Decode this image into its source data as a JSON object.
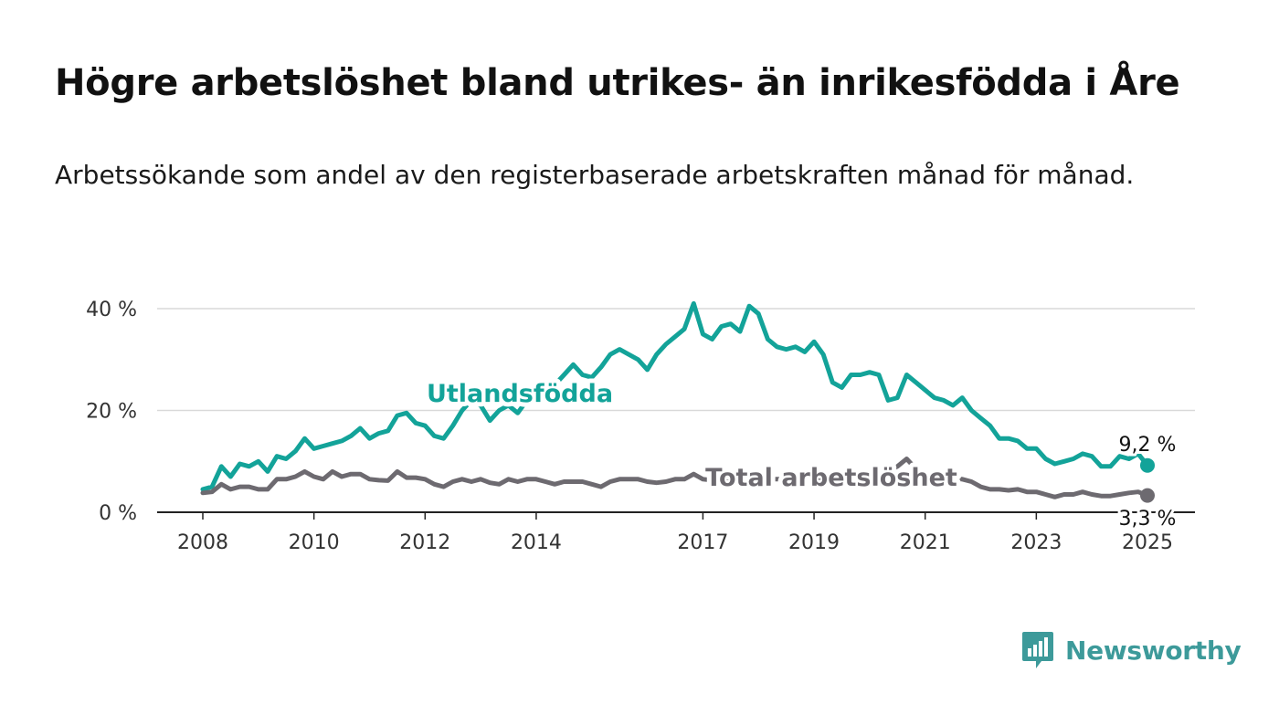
{
  "header": {
    "title": "Högre arbetslöshet bland utrikes- än inrikesfödda i Åre",
    "subtitle": "Arbetssökande som andel av den registerbaserade arbetskraften månad för månad."
  },
  "brand": {
    "name": "Newsworthy",
    "icon": "bar-chart-speech-bubble-icon",
    "color": "#3d9a9a"
  },
  "chart_data": {
    "type": "line",
    "x_axis_ticks": [
      "2008",
      "2010",
      "2012",
      "2014",
      "2017",
      "2019",
      "2021",
      "2023",
      "2025"
    ],
    "y_axis_ticks": [
      "0 %",
      "20 %",
      "40 %"
    ],
    "ylim": [
      0,
      40
    ],
    "grid": true,
    "series": [
      {
        "name": "Utlandsfödda",
        "color": "#13a399",
        "end_value_label": "9,2 %",
        "points": [
          [
            "2008-01",
            4.5
          ],
          [
            "2008-03",
            5.0
          ],
          [
            "2008-05",
            9.0
          ],
          [
            "2008-07",
            7.0
          ],
          [
            "2008-09",
            9.5
          ],
          [
            "2008-11",
            9.0
          ],
          [
            "2009-01",
            10.0
          ],
          [
            "2009-03",
            8.0
          ],
          [
            "2009-05",
            11.0
          ],
          [
            "2009-07",
            10.5
          ],
          [
            "2009-09",
            12.0
          ],
          [
            "2009-11",
            14.5
          ],
          [
            "2010-01",
            12.5
          ],
          [
            "2010-03",
            13.0
          ],
          [
            "2010-05",
            13.5
          ],
          [
            "2010-07",
            14.0
          ],
          [
            "2010-09",
            15.0
          ],
          [
            "2010-11",
            16.5
          ],
          [
            "2011-01",
            14.5
          ],
          [
            "2011-03",
            15.5
          ],
          [
            "2011-05",
            16.0
          ],
          [
            "2011-07",
            19.0
          ],
          [
            "2011-09",
            19.5
          ],
          [
            "2011-11",
            17.5
          ],
          [
            "2012-01",
            17.0
          ],
          [
            "2012-03",
            15.0
          ],
          [
            "2012-05",
            14.5
          ],
          [
            "2012-07",
            17.0
          ],
          [
            "2012-09",
            20.0
          ],
          [
            "2012-11",
            22.0
          ],
          [
            "2013-01",
            21.0
          ],
          [
            "2013-03",
            18.0
          ],
          [
            "2013-05",
            20.0
          ],
          [
            "2013-07",
            21.0
          ],
          [
            "2013-09",
            19.5
          ],
          [
            "2013-11",
            22.0
          ],
          [
            "2014-01",
            23.0
          ],
          [
            "2014-03",
            24.0
          ],
          [
            "2014-05",
            25.0
          ],
          [
            "2014-07",
            27.0
          ],
          [
            "2014-09",
            29.0
          ],
          [
            "2014-11",
            27.0
          ],
          [
            "2015-01",
            26.5
          ],
          [
            "2015-03",
            28.5
          ],
          [
            "2015-05",
            31.0
          ],
          [
            "2015-07",
            32.0
          ],
          [
            "2015-09",
            31.0
          ],
          [
            "2015-11",
            30.0
          ],
          [
            "2016-01",
            28.0
          ],
          [
            "2016-03",
            31.0
          ],
          [
            "2016-05",
            33.0
          ],
          [
            "2016-07",
            34.5
          ],
          [
            "2016-09",
            36.0
          ],
          [
            "2016-11",
            41.0
          ],
          [
            "2017-01",
            35.0
          ],
          [
            "2017-03",
            34.0
          ],
          [
            "2017-05",
            36.5
          ],
          [
            "2017-07",
            37.0
          ],
          [
            "2017-09",
            35.5
          ],
          [
            "2017-11",
            40.5
          ],
          [
            "2018-01",
            39.0
          ],
          [
            "2018-03",
            34.0
          ],
          [
            "2018-05",
            32.5
          ],
          [
            "2018-07",
            32.0
          ],
          [
            "2018-09",
            32.5
          ],
          [
            "2018-11",
            31.5
          ],
          [
            "2019-01",
            33.5
          ],
          [
            "2019-03",
            31.0
          ],
          [
            "2019-05",
            25.5
          ],
          [
            "2019-07",
            24.5
          ],
          [
            "2019-09",
            27.0
          ],
          [
            "2019-11",
            27.0
          ],
          [
            "2020-01",
            27.5
          ],
          [
            "2020-03",
            27.0
          ],
          [
            "2020-05",
            22.0
          ],
          [
            "2020-07",
            22.5
          ],
          [
            "2020-09",
            27.0
          ],
          [
            "2020-11",
            25.5
          ],
          [
            "2021-01",
            24.0
          ],
          [
            "2021-03",
            22.5
          ],
          [
            "2021-05",
            22.0
          ],
          [
            "2021-07",
            21.0
          ],
          [
            "2021-09",
            22.5
          ],
          [
            "2021-11",
            20.0
          ],
          [
            "2022-01",
            18.5
          ],
          [
            "2022-03",
            17.0
          ],
          [
            "2022-05",
            14.5
          ],
          [
            "2022-07",
            14.5
          ],
          [
            "2022-09",
            14.0
          ],
          [
            "2022-11",
            12.5
          ],
          [
            "2023-01",
            12.5
          ],
          [
            "2023-03",
            10.5
          ],
          [
            "2023-05",
            9.5
          ],
          [
            "2023-07",
            10.0
          ],
          [
            "2023-09",
            10.5
          ],
          [
            "2023-11",
            11.5
          ],
          [
            "2024-01",
            11.0
          ],
          [
            "2024-03",
            9.0
          ],
          [
            "2024-05",
            9.0
          ],
          [
            "2024-07",
            11.0
          ],
          [
            "2024-09",
            10.5
          ],
          [
            "2024-11",
            11.5
          ],
          [
            "2025-01",
            9.2
          ]
        ]
      },
      {
        "name": "Total arbetslöshet",
        "color": "#6d6a70",
        "end_value_label": "3,3 %",
        "points": [
          [
            "2008-01",
            3.8
          ],
          [
            "2008-03",
            4.0
          ],
          [
            "2008-05",
            5.5
          ],
          [
            "2008-07",
            4.5
          ],
          [
            "2008-09",
            5.0
          ],
          [
            "2008-11",
            5.0
          ],
          [
            "2009-01",
            4.5
          ],
          [
            "2009-03",
            4.5
          ],
          [
            "2009-05",
            6.5
          ],
          [
            "2009-07",
            6.5
          ],
          [
            "2009-09",
            7.0
          ],
          [
            "2009-11",
            8.0
          ],
          [
            "2010-01",
            7.0
          ],
          [
            "2010-03",
            6.5
          ],
          [
            "2010-05",
            8.0
          ],
          [
            "2010-07",
            7.0
          ],
          [
            "2010-09",
            7.5
          ],
          [
            "2010-11",
            7.5
          ],
          [
            "2011-01",
            6.5
          ],
          [
            "2011-03",
            6.3
          ],
          [
            "2011-05",
            6.2
          ],
          [
            "2011-07",
            8.0
          ],
          [
            "2011-09",
            6.8
          ],
          [
            "2011-11",
            6.8
          ],
          [
            "2012-01",
            6.5
          ],
          [
            "2012-03",
            5.5
          ],
          [
            "2012-05",
            5.0
          ],
          [
            "2012-07",
            6.0
          ],
          [
            "2012-09",
            6.5
          ],
          [
            "2012-11",
            6.0
          ],
          [
            "2013-01",
            6.5
          ],
          [
            "2013-03",
            5.8
          ],
          [
            "2013-05",
            5.5
          ],
          [
            "2013-07",
            6.5
          ],
          [
            "2013-09",
            6.0
          ],
          [
            "2013-11",
            6.5
          ],
          [
            "2014-01",
            6.5
          ],
          [
            "2014-03",
            6.0
          ],
          [
            "2014-05",
            5.5
          ],
          [
            "2014-07",
            6.0
          ],
          [
            "2014-09",
            6.0
          ],
          [
            "2014-11",
            6.0
          ],
          [
            "2015-01",
            5.5
          ],
          [
            "2015-03",
            5.0
          ],
          [
            "2015-05",
            6.0
          ],
          [
            "2015-07",
            6.5
          ],
          [
            "2015-09",
            6.5
          ],
          [
            "2015-11",
            6.5
          ],
          [
            "2016-01",
            6.0
          ],
          [
            "2016-03",
            5.8
          ],
          [
            "2016-05",
            6.0
          ],
          [
            "2016-07",
            6.5
          ],
          [
            "2016-09",
            6.5
          ],
          [
            "2016-11",
            7.5
          ],
          [
            "2017-01",
            6.5
          ],
          [
            "2017-03",
            6.3
          ],
          [
            "2017-05",
            6.0
          ],
          [
            "2017-07",
            6.0
          ],
          [
            "2017-09",
            6.0
          ],
          [
            "2017-11",
            7.0
          ],
          [
            "2018-01",
            6.5
          ],
          [
            "2018-03",
            6.5
          ],
          [
            "2018-05",
            6.5
          ],
          [
            "2018-07",
            6.5
          ],
          [
            "2018-09",
            6.5
          ],
          [
            "2018-11",
            6.0
          ],
          [
            "2019-01",
            6.5
          ],
          [
            "2019-03",
            6.5
          ],
          [
            "2019-05",
            6.0
          ],
          [
            "2019-07",
            6.0
          ],
          [
            "2019-09",
            6.5
          ],
          [
            "2019-11",
            6.5
          ],
          [
            "2020-01",
            6.5
          ],
          [
            "2020-03",
            6.5
          ],
          [
            "2020-05",
            8.0
          ],
          [
            "2020-07",
            9.0
          ],
          [
            "2020-09",
            10.5
          ],
          [
            "2020-11",
            8.5
          ],
          [
            "2021-01",
            7.5
          ],
          [
            "2021-03",
            7.0
          ],
          [
            "2021-05",
            6.5
          ],
          [
            "2021-07",
            6.5
          ],
          [
            "2021-09",
            6.5
          ],
          [
            "2021-11",
            6.0
          ],
          [
            "2022-01",
            5.0
          ],
          [
            "2022-03",
            4.5
          ],
          [
            "2022-05",
            4.5
          ],
          [
            "2022-07",
            4.3
          ],
          [
            "2022-09",
            4.5
          ],
          [
            "2022-11",
            4.0
          ],
          [
            "2023-01",
            4.0
          ],
          [
            "2023-03",
            3.5
          ],
          [
            "2023-05",
            3.0
          ],
          [
            "2023-07",
            3.5
          ],
          [
            "2023-09",
            3.5
          ],
          [
            "2023-11",
            4.0
          ],
          [
            "2024-01",
            3.5
          ],
          [
            "2024-03",
            3.2
          ],
          [
            "2024-05",
            3.2
          ],
          [
            "2024-07",
            3.5
          ],
          [
            "2024-09",
            3.8
          ],
          [
            "2024-11",
            4.0
          ],
          [
            "2025-01",
            3.3
          ]
        ]
      }
    ]
  }
}
